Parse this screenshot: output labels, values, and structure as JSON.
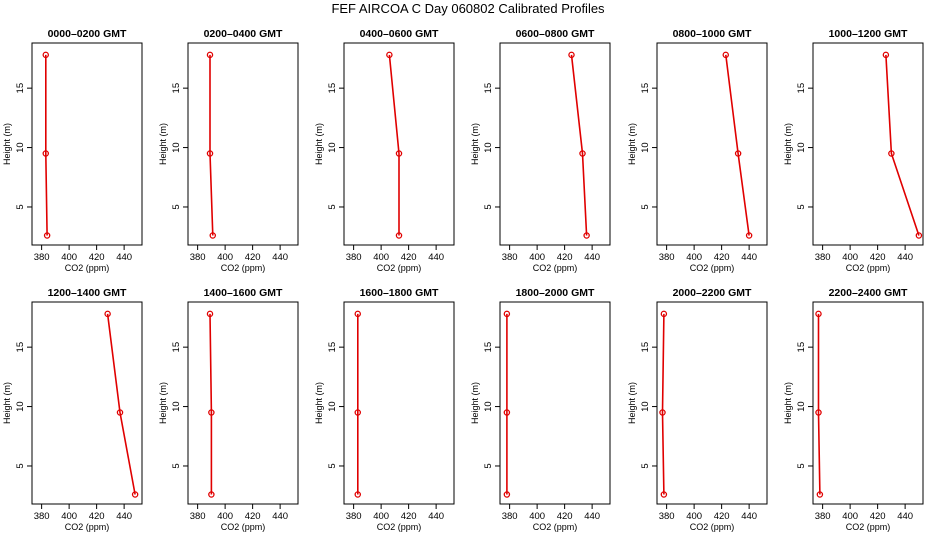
{
  "title": "FEF AIRCOA C  Day 060802  Calibrated Profiles",
  "colors": {
    "profile": "#e00000",
    "axis": "#000000"
  },
  "chart_data": [
    {
      "type": "line",
      "title": "0000–0200 GMT",
      "xlabel": "CO2 (ppm)",
      "ylabel": "Height (m)",
      "xlim": [
        373,
        453
      ],
      "ylim": [
        1.8,
        18.8
      ],
      "xticks": [
        380,
        400,
        420,
        440
      ],
      "yticks": [
        5,
        10,
        15
      ],
      "legend": "none",
      "grid": false,
      "x": [
        383,
        383,
        384
      ],
      "y": [
        17.8,
        9.5,
        2.6
      ]
    },
    {
      "type": "line",
      "title": "0200–0400 GMT",
      "xlabel": "CO2 (ppm)",
      "ylabel": "Height (m)",
      "xlim": [
        373,
        453
      ],
      "ylim": [
        1.8,
        18.8
      ],
      "xticks": [
        380,
        400,
        420,
        440
      ],
      "yticks": [
        5,
        10,
        15
      ],
      "legend": "none",
      "grid": false,
      "x": [
        389,
        389,
        391
      ],
      "y": [
        17.8,
        9.5,
        2.6
      ]
    },
    {
      "type": "line",
      "title": "0400–0600 GMT",
      "xlabel": "CO2 (ppm)",
      "ylabel": "Height (m)",
      "xlim": [
        373,
        453
      ],
      "ylim": [
        1.8,
        18.8
      ],
      "xticks": [
        380,
        400,
        420,
        440
      ],
      "yticks": [
        5,
        10,
        15
      ],
      "legend": "none",
      "grid": false,
      "x": [
        406,
        413,
        413
      ],
      "y": [
        17.8,
        9.5,
        2.6
      ]
    },
    {
      "type": "line",
      "title": "0600–0800 GMT",
      "xlabel": "CO2 (ppm)",
      "ylabel": "Height (m)",
      "xlim": [
        373,
        453
      ],
      "ylim": [
        1.8,
        18.8
      ],
      "xticks": [
        380,
        400,
        420,
        440
      ],
      "yticks": [
        5,
        10,
        15
      ],
      "legend": "none",
      "grid": false,
      "x": [
        425,
        433,
        436
      ],
      "y": [
        17.8,
        9.5,
        2.6
      ]
    },
    {
      "type": "line",
      "title": "0800–1000 GMT",
      "xlabel": "CO2 (ppm)",
      "ylabel": "Height (m)",
      "xlim": [
        373,
        453
      ],
      "ylim": [
        1.8,
        18.8
      ],
      "xticks": [
        380,
        400,
        420,
        440
      ],
      "yticks": [
        5,
        10,
        15
      ],
      "legend": "none",
      "grid": false,
      "x": [
        423,
        432,
        440
      ],
      "y": [
        17.8,
        9.5,
        2.6
      ]
    },
    {
      "type": "line",
      "title": "1000–1200 GMT",
      "xlabel": "CO2 (ppm)",
      "ylabel": "Height (m)",
      "xlim": [
        373,
        453
      ],
      "ylim": [
        1.8,
        18.8
      ],
      "xticks": [
        380,
        400,
        420,
        440
      ],
      "yticks": [
        5,
        10,
        15
      ],
      "legend": "none",
      "grid": false,
      "x": [
        426,
        430,
        450
      ],
      "y": [
        17.8,
        9.5,
        2.6
      ]
    },
    {
      "type": "line",
      "title": "1200–1400 GMT",
      "xlabel": "CO2 (ppm)",
      "ylabel": "Height (m)",
      "xlim": [
        373,
        453
      ],
      "ylim": [
        1.8,
        18.8
      ],
      "xticks": [
        380,
        400,
        420,
        440
      ],
      "yticks": [
        5,
        10,
        15
      ],
      "legend": "none",
      "grid": false,
      "x": [
        428,
        437,
        448
      ],
      "y": [
        17.8,
        9.5,
        2.6
      ]
    },
    {
      "type": "line",
      "title": "1400–1600 GMT",
      "xlabel": "CO2 (ppm)",
      "ylabel": "Height (m)",
      "xlim": [
        373,
        453
      ],
      "ylim": [
        1.8,
        18.8
      ],
      "xticks": [
        380,
        400,
        420,
        440
      ],
      "yticks": [
        5,
        10,
        15
      ],
      "legend": "none",
      "grid": false,
      "x": [
        389,
        390,
        390
      ],
      "y": [
        17.8,
        9.5,
        2.6
      ]
    },
    {
      "type": "line",
      "title": "1600–1800 GMT",
      "xlabel": "CO2 (ppm)",
      "ylabel": "Height (m)",
      "xlim": [
        373,
        453
      ],
      "ylim": [
        1.8,
        18.8
      ],
      "xticks": [
        380,
        400,
        420,
        440
      ],
      "yticks": [
        5,
        10,
        15
      ],
      "legend": "none",
      "grid": false,
      "x": [
        383,
        383,
        383
      ],
      "y": [
        17.8,
        9.5,
        2.6
      ]
    },
    {
      "type": "line",
      "title": "1800–2000 GMT",
      "xlabel": "CO2 (ppm)",
      "ylabel": "Height (m)",
      "xlim": [
        373,
        453
      ],
      "ylim": [
        1.8,
        18.8
      ],
      "xticks": [
        380,
        400,
        420,
        440
      ],
      "yticks": [
        5,
        10,
        15
      ],
      "legend": "none",
      "grid": false,
      "x": [
        378,
        378,
        378
      ],
      "y": [
        17.8,
        9.5,
        2.6
      ]
    },
    {
      "type": "line",
      "title": "2000–2200 GMT",
      "xlabel": "CO2 (ppm)",
      "ylabel": "Height (m)",
      "xlim": [
        373,
        453
      ],
      "ylim": [
        1.8,
        18.8
      ],
      "xticks": [
        380,
        400,
        420,
        440
      ],
      "yticks": [
        5,
        10,
        15
      ],
      "legend": "none",
      "grid": false,
      "x": [
        378,
        377,
        378
      ],
      "y": [
        17.8,
        9.5,
        2.6
      ]
    },
    {
      "type": "line",
      "title": "2200–2400 GMT",
      "xlabel": "CO2 (ppm)",
      "ylabel": "Height (m)",
      "xlim": [
        373,
        453
      ],
      "ylim": [
        1.8,
        18.8
      ],
      "xticks": [
        380,
        400,
        420,
        440
      ],
      "yticks": [
        5,
        10,
        15
      ],
      "legend": "none",
      "grid": false,
      "x": [
        377,
        377,
        378
      ],
      "y": [
        17.8,
        9.5,
        2.6
      ]
    }
  ]
}
